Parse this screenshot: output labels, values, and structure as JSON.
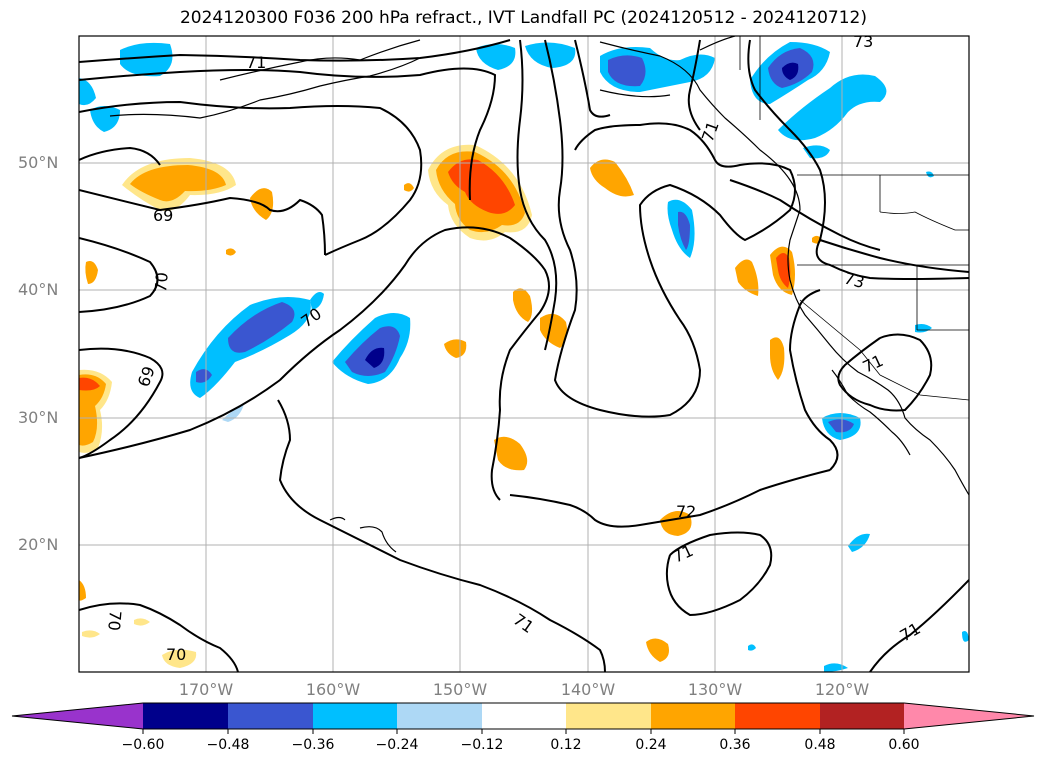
{
  "title": "2024120300 F036 200 hPa refract., IVT Landfall PC (2024120512 - 2024120712)",
  "lat_labels": [
    "50°N",
    "40°N",
    "30°N",
    "20°N"
  ],
  "lon_labels": [
    "170°W",
    "160°W",
    "150°W",
    "140°W",
    "130°W",
    "120°W"
  ],
  "contour_labels": [
    "71",
    "73",
    "69",
    "70",
    "69",
    "70",
    "71",
    "73",
    "71",
    "72",
    "71",
    "70",
    "70",
    "71",
    "71"
  ],
  "colorbar": {
    "ticks": [
      "−0.60",
      "−0.48",
      "−0.36",
      "−0.24",
      "−0.12",
      "0.12",
      "0.24",
      "0.36",
      "0.48",
      "0.60"
    ],
    "colors": [
      "#9933cc",
      "#00008b",
      "#3a56d0",
      "#00bfff",
      "#add8f5",
      "#ffffff",
      "#ffe68a",
      "#ffa500",
      "#ff4500",
      "#b22222",
      "#ff88aa"
    ]
  },
  "colors": {
    "grid": "#b0b0b0",
    "contour": "#000000",
    "coast": "#000000"
  }
}
